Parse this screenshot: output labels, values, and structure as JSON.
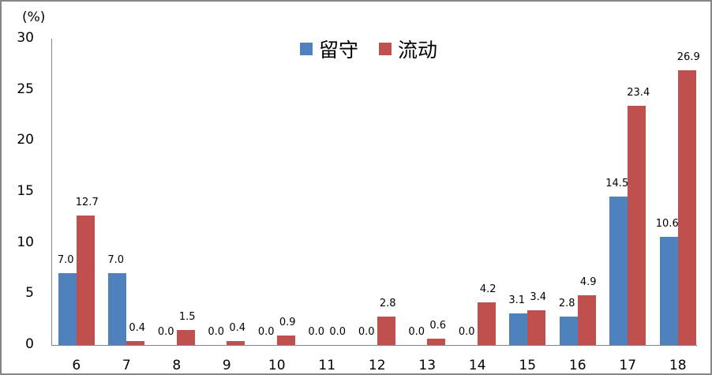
{
  "chart_data": {
    "type": "bar",
    "title": "",
    "xlabel": "",
    "ylabel": "(%)",
    "ylim": [
      0,
      30
    ],
    "yticks": [
      0,
      5,
      10,
      15,
      20,
      25,
      30
    ],
    "grid": false,
    "legend_position": "top-center",
    "categories": [
      "6",
      "7",
      "8",
      "9",
      "10",
      "11",
      "12",
      "13",
      "14",
      "15",
      "16",
      "17",
      "18"
    ],
    "series": [
      {
        "name": "留守",
        "color": "#4F81BD",
        "values": [
          7.0,
          7.0,
          0.0,
          0.0,
          0.0,
          0.0,
          0.0,
          0.0,
          0.0,
          3.1,
          2.8,
          14.5,
          10.6
        ]
      },
      {
        "name": "流动",
        "color": "#C0504D",
        "values": [
          12.7,
          0.4,
          1.5,
          0.4,
          0.9,
          0.0,
          2.8,
          0.6,
          4.2,
          3.4,
          4.9,
          23.4,
          26.9
        ]
      }
    ]
  },
  "y_unit": "(%)",
  "legend": [
    {
      "label": "留守",
      "color": "#4F81BD"
    },
    {
      "label": "流动",
      "color": "#C0504D"
    }
  ]
}
